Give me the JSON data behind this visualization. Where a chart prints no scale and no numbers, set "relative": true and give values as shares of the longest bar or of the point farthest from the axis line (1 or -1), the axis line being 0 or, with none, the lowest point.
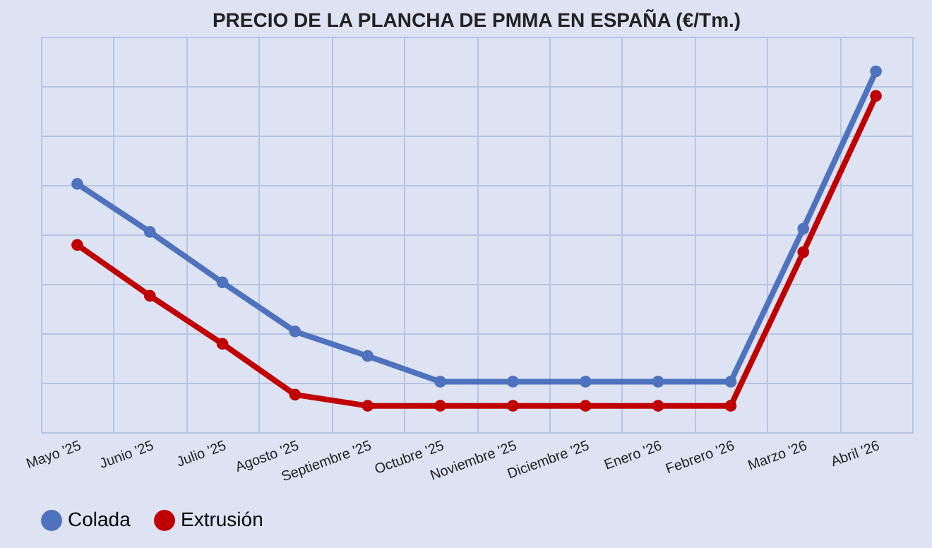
{
  "chart_data": {
    "type": "line",
    "title": "PRECIO DE LA PLANCHA DE PMMA EN ESPAÑA (€/Tm.)",
    "relative": true,
    "categories": [
      "Mayo '25",
      "Junio '25",
      "Julio '25",
      "Agosto '25",
      "Septiembre '25",
      "Octubre '25",
      "Noviembre '25",
      "Diciembre '25",
      "Enero '26",
      "Febrero '26",
      "Marzo '26",
      "Abril '26"
    ],
    "series": [
      {
        "name": "Colada",
        "color": "#4f72be",
        "values": [
          0.688,
          0.555,
          0.415,
          0.279,
          0.211,
          0.14,
          0.14,
          0.14,
          0.14,
          0.14,
          0.564,
          1
        ]
      },
      {
        "name": "Extrusión",
        "color": "#c00000",
        "values": [
          0.519,
          0.378,
          0.245,
          0.104,
          0.073,
          0.073,
          0.073,
          0.073,
          0.073,
          0.073,
          0.499,
          0.932
        ]
      }
    ],
    "grid": true,
    "legend": "bottom",
    "marker": "circle",
    "line_style": "solid"
  }
}
